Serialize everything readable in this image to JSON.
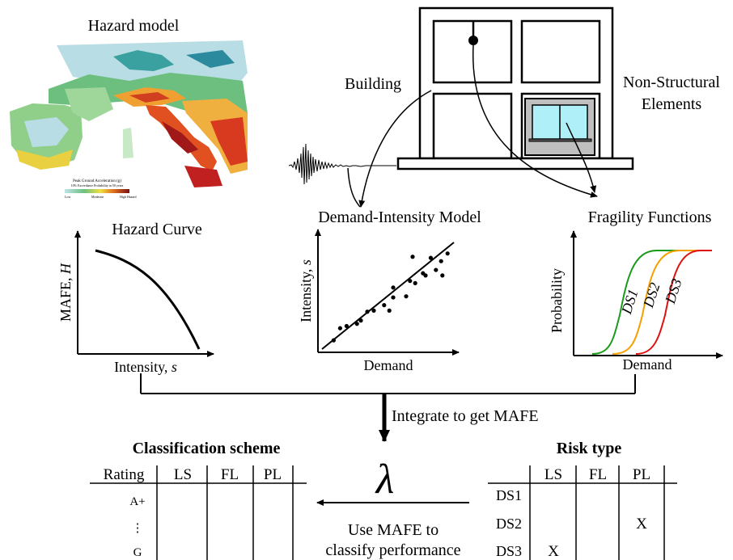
{
  "hazard_model": {
    "title": "Hazard model",
    "map_caption_line1": "Peak Ground Acceleration (g)",
    "map_caption_line2": "10% Exceedance Probability in 50 years",
    "legend_low": "Low",
    "legend_moderate": "Moderate",
    "legend_high": "High Hazard"
  },
  "building": {
    "label": "Building",
    "nse_label_line1": "Non-Structural",
    "nse_label_line2": "Elements"
  },
  "hazard_curve": {
    "title": "Hazard Curve",
    "ylabel_prefix": "MAFE, ",
    "ylabel_symbol": "H",
    "xlabel_prefix": "Intensity, ",
    "xlabel_symbol": "s"
  },
  "demand_intensity": {
    "title": "Demand-Intensity Model",
    "ylabel_prefix": "Intensity, ",
    "ylabel_symbol": "s",
    "xlabel": "Demand",
    "points": [
      [
        0.09,
        0.08
      ],
      [
        0.14,
        0.19
      ],
      [
        0.19,
        0.21
      ],
      [
        0.27,
        0.23
      ],
      [
        0.3,
        0.26
      ],
      [
        0.35,
        0.34
      ],
      [
        0.4,
        0.35
      ],
      [
        0.48,
        0.4
      ],
      [
        0.52,
        0.35
      ],
      [
        0.55,
        0.47
      ],
      [
        0.65,
        0.48
      ],
      [
        0.68,
        0.62
      ],
      [
        0.72,
        0.6
      ],
      [
        0.78,
        0.69
      ],
      [
        0.8,
        0.67
      ],
      [
        0.88,
        0.72
      ],
      [
        0.92,
        0.8
      ],
      [
        0.93,
        0.67
      ],
      [
        0.97,
        0.87
      ],
      [
        0.84,
        0.83
      ],
      [
        0.7,
        0.84
      ],
      [
        0.55,
        0.56
      ]
    ]
  },
  "fragility": {
    "title": "Fragility Functions",
    "ylabel": "Probability",
    "xlabel": "Demand",
    "curves": [
      {
        "name": "DS1",
        "color": "#1a9a1a"
      },
      {
        "name": "DS2",
        "color": "#f5a000"
      },
      {
        "name": "DS3",
        "color": "#e01010"
      }
    ]
  },
  "integrate_label": "Integrate to get MAFE",
  "lambda_symbol": "λ",
  "classify_label_line1": "Use MAFE to",
  "classify_label_line2": "classify performance",
  "classification": {
    "title": "Classification scheme",
    "headers": [
      "Rating",
      "LS",
      "FL",
      "PL"
    ],
    "rows": [
      "A+",
      "⋮",
      "G"
    ]
  },
  "risk_type": {
    "title": "Risk type",
    "headers": [
      "LS",
      "FL",
      "PL"
    ],
    "rows": [
      {
        "label": "DS1",
        "LS": "",
        "FL": "",
        "PL": ""
      },
      {
        "label": "DS2",
        "LS": "",
        "FL": "",
        "PL": "X"
      },
      {
        "label": "DS3",
        "LS": "X",
        "FL": "",
        "PL": ""
      }
    ]
  }
}
